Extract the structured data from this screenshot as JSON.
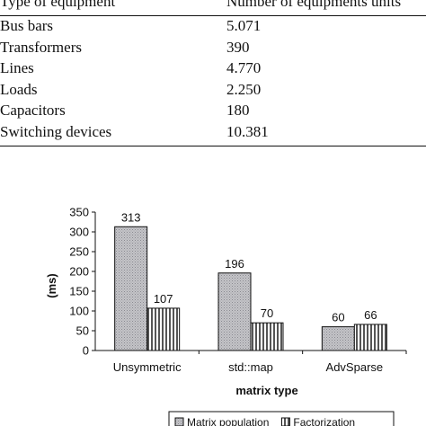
{
  "table": {
    "headers": [
      "Type of equipment",
      "Number of equipments units"
    ],
    "rows": [
      [
        "Bus bars",
        "5.071"
      ],
      [
        "Transformers",
        "390"
      ],
      [
        "Lines",
        "4.770"
      ],
      [
        "Loads",
        "2.250"
      ],
      [
        "Capacitors",
        "180"
      ],
      [
        "Switching devices",
        "10.381"
      ]
    ]
  },
  "chart_data": {
    "type": "bar",
    "categories": [
      "Unsymmetric",
      "std::map",
      "AdvSparse"
    ],
    "series": [
      {
        "name": "Matrix population",
        "values": [
          313,
          196,
          60
        ],
        "color": "#c8c8cc",
        "pattern": "dotted"
      },
      {
        "name": "Factorization",
        "values": [
          107,
          70,
          66
        ],
        "color": "#ffffff",
        "pattern": "vertical-stripes"
      }
    ],
    "data_labels": [
      [
        "313",
        "196",
        "60"
      ],
      [
        "107",
        "70",
        "66"
      ]
    ],
    "xlabel": "matrix type",
    "ylabel": "(ms)",
    "ylim": [
      0,
      350
    ],
    "yticks": [
      0,
      50,
      100,
      150,
      200,
      250,
      300,
      350
    ],
    "grid": false,
    "legend_placement": "bottom"
  }
}
